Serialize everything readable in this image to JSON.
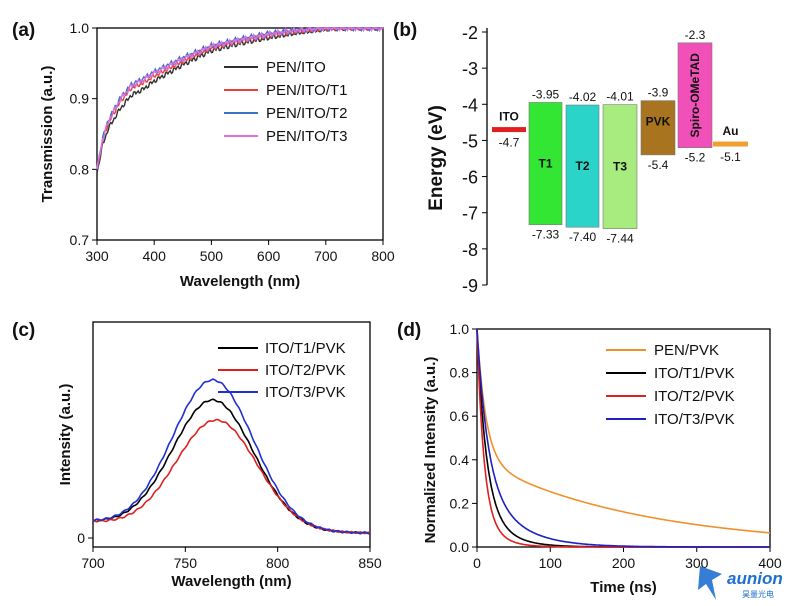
{
  "chart_data": [
    {
      "panel": "(a)",
      "type": "line",
      "xlabel": "Wavelength (nm)",
      "ylabel": "Transmission (a.u.)",
      "xlim": [
        300,
        800
      ],
      "ylim": [
        0.7,
        1.0
      ],
      "xticks": [
        "300",
        "400",
        "500",
        "600",
        "700",
        "800"
      ],
      "yticks": [
        "0.7",
        "0.8",
        "0.9",
        "1.0"
      ],
      "legend_position": "top-right",
      "series": [
        {
          "name": "PEN/ITO",
          "color": "#303030",
          "x": [
            300,
            310,
            320,
            340,
            360,
            380,
            400,
            450,
            500,
            550,
            600,
            650,
            700,
            750,
            800
          ],
          "y": [
            0.795,
            0.835,
            0.858,
            0.885,
            0.905,
            0.913,
            0.925,
            0.948,
            0.968,
            0.978,
            0.986,
            0.993,
            0.998,
            1.0,
            1.0
          ]
        },
        {
          "name": "PEN/ITO/T1",
          "color": "#e8403a",
          "x": [
            300,
            310,
            320,
            340,
            360,
            380,
            400,
            450,
            500,
            550,
            600,
            650,
            700,
            750,
            800
          ],
          "y": [
            0.8,
            0.842,
            0.866,
            0.895,
            0.915,
            0.922,
            0.932,
            0.953,
            0.972,
            0.982,
            0.99,
            0.996,
            1.0,
            1.0,
            1.0
          ]
        },
        {
          "name": "PEN/ITO/T2",
          "color": "#3a72c8",
          "x": [
            300,
            310,
            320,
            340,
            360,
            380,
            400,
            450,
            500,
            550,
            600,
            650,
            700,
            750,
            800
          ],
          "y": [
            0.8,
            0.845,
            0.87,
            0.9,
            0.92,
            0.928,
            0.938,
            0.958,
            0.975,
            0.984,
            0.992,
            0.997,
            1.0,
            1.0,
            1.0
          ]
        },
        {
          "name": "PEN/ITO/T3",
          "color": "#e070e0",
          "x": [
            300,
            310,
            320,
            340,
            360,
            380,
            400,
            450,
            500,
            550,
            600,
            650,
            700,
            750,
            800
          ],
          "y": [
            0.8,
            0.843,
            0.868,
            0.898,
            0.918,
            0.926,
            0.936,
            0.956,
            0.974,
            0.983,
            0.991,
            0.997,
            1.0,
            1.0,
            1.0
          ]
        }
      ]
    },
    {
      "panel": "(b)",
      "type": "bar",
      "ylabel": "Energy (eV)",
      "ylim": [
        -9,
        -2
      ],
      "yticks": [
        "-2",
        "-3",
        "-4",
        "-5",
        "-6",
        "-7",
        "-8",
        "-9"
      ],
      "levels": [
        {
          "label": "ITO",
          "kind": "line",
          "value": -4.7,
          "value_text": "-4.7",
          "color": "#e02020"
        },
        {
          "label": "T1",
          "kind": "block",
          "top": -3.95,
          "bottom": -7.33,
          "top_text": "-3.95",
          "bottom_text": "-7.33",
          "color": "#33e633"
        },
        {
          "label": "T2",
          "kind": "block",
          "top": -4.02,
          "bottom": -7.4,
          "top_text": "-4.02",
          "bottom_text": "-7.40",
          "color": "#2ad4c8"
        },
        {
          "label": "T3",
          "kind": "block",
          "top": -4.01,
          "bottom": -7.44,
          "top_text": "-4.01",
          "bottom_text": "-7.44",
          "color": "#a8ec80"
        },
        {
          "label": "PVK",
          "kind": "block",
          "top": -3.9,
          "bottom": -5.4,
          "top_text": "-3.9",
          "bottom_text": "-5.4",
          "color": "#a87420"
        },
        {
          "label": "Spiro-OMeTAD",
          "kind": "block",
          "top": -2.3,
          "bottom": -5.2,
          "top_text": "-2.3",
          "bottom_text": "-5.2",
          "color": "#f050b8"
        },
        {
          "label": "Au",
          "kind": "line",
          "value": -5.1,
          "value_text": "-5.1",
          "color": "#f0a030"
        }
      ]
    },
    {
      "panel": "(c)",
      "type": "line",
      "xlabel": "Wavelength (nm)",
      "ylabel": "Intensity (a.u.)",
      "xlim": [
        700,
        850
      ],
      "xticks": [
        "700",
        "750",
        "800",
        "850"
      ],
      "yticks": [
        "0"
      ],
      "legend_position": "top-right",
      "series": [
        {
          "name": "ITO/T1/PVK",
          "color": "#000000",
          "peak": 765,
          "width": 22,
          "amp": 0.65
        },
        {
          "name": "ITO/T2/PVK",
          "color": "#e02020",
          "peak": 767,
          "width": 22,
          "amp": 0.55
        },
        {
          "name": "ITO/T3/PVK",
          "color": "#2030d0",
          "peak": 765,
          "width": 22,
          "amp": 0.75
        }
      ]
    },
    {
      "panel": "(d)",
      "type": "line",
      "xlabel": "Time (ns)",
      "ylabel": "Normalized Intensity (a.u.)",
      "xlim": [
        0,
        400
      ],
      "ylim": [
        0,
        1.0
      ],
      "xticks": [
        "0",
        "100",
        "200",
        "300",
        "400"
      ],
      "yticks": [
        "0.0",
        "0.2",
        "0.4",
        "0.6",
        "0.8",
        "1.0"
      ],
      "legend_position": "top-right",
      "series": [
        {
          "name": "PEN/PVK",
          "color": "#f0902a",
          "a1": 0.6,
          "t1": 12,
          "a2": 0.4,
          "t2": 220
        },
        {
          "name": "ITO/T1/PVK",
          "color": "#000000",
          "a1": 0.75,
          "t1": 12,
          "a2": 0.25,
          "t2": 30
        },
        {
          "name": "ITO/T2/PVK",
          "color": "#e02020",
          "a1": 0.8,
          "t1": 9,
          "a2": 0.2,
          "t2": 22
        },
        {
          "name": "ITO/T3/PVK",
          "color": "#2020c0",
          "a1": 0.65,
          "t1": 14,
          "a2": 0.35,
          "t2": 45
        }
      ]
    }
  ],
  "watermark": {
    "brand": "aunion",
    "subtitle": "昊量光电"
  }
}
